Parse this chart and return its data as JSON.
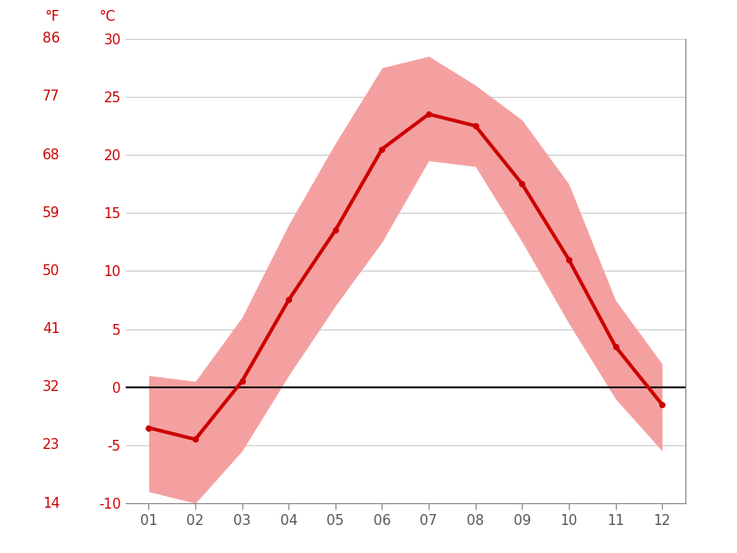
{
  "months": [
    1,
    2,
    3,
    4,
    5,
    6,
    7,
    8,
    9,
    10,
    11,
    12
  ],
  "month_labels": [
    "01",
    "02",
    "03",
    "04",
    "05",
    "06",
    "07",
    "08",
    "09",
    "10",
    "11",
    "12"
  ],
  "mean_c": [
    -3.5,
    -4.5,
    0.5,
    7.5,
    13.5,
    20.5,
    23.5,
    22.5,
    17.5,
    11.0,
    3.5,
    -1.5
  ],
  "high_c": [
    1.0,
    0.5,
    6.0,
    14.0,
    21.0,
    27.5,
    28.5,
    26.0,
    23.0,
    17.5,
    7.5,
    2.0
  ],
  "low_c": [
    -9.0,
    -10.0,
    -5.5,
    1.0,
    7.0,
    12.5,
    19.5,
    19.0,
    12.5,
    5.5,
    -1.0,
    -5.5
  ],
  "ylim_c": [
    -10,
    30
  ],
  "yticks_c": [
    -10,
    -5,
    0,
    5,
    10,
    15,
    20,
    25,
    30
  ],
  "yticks_f": [
    14,
    23,
    32,
    41,
    50,
    59,
    68,
    77,
    86
  ],
  "line_color": "#cc0000",
  "fill_color": "#f5a0a0",
  "zero_line_color": "#000000",
  "grid_color": "#cccccc",
  "background_color": "#ffffff",
  "label_color": "#cc0000",
  "tick_color": "#555555",
  "line_width": 2.8,
  "marker_size": 4,
  "label_fontsize": 11,
  "tick_fontsize": 11
}
